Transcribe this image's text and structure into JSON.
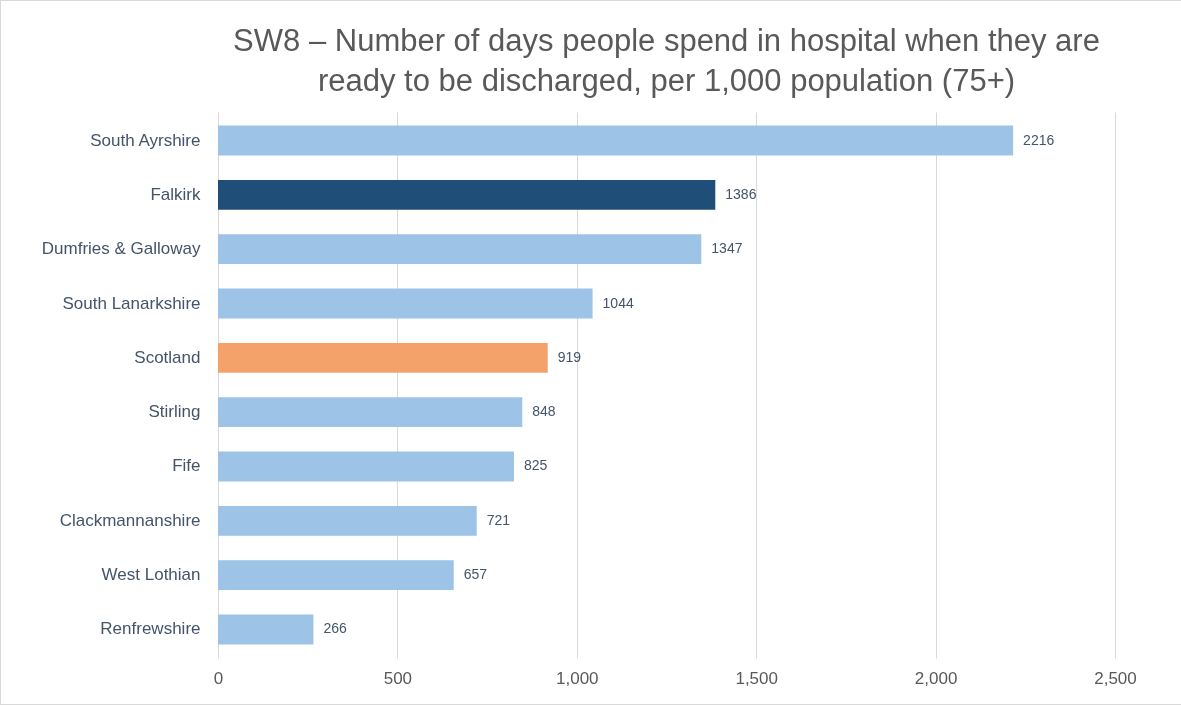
{
  "chart_data": {
    "type": "bar",
    "orientation": "horizontal",
    "title": "SW8 – Number of days people spend in hospital when they are ready to be discharged, per 1,000 population (75+)",
    "categories": [
      "South Ayrshire",
      "Falkirk",
      "Dumfries & Galloway",
      "South Lanarkshire",
      "Scotland",
      "Stirling",
      "Fife",
      "Clackmannanshire",
      "West Lothian",
      "Renfrewshire"
    ],
    "values": [
      2216,
      1386,
      1347,
      1044,
      919,
      848,
      825,
      721,
      657,
      266
    ],
    "colors": [
      "#9dc3e6",
      "#1f4e79",
      "#9dc3e6",
      "#9dc3e6",
      "#f4a26a",
      "#9dc3e6",
      "#9dc3e6",
      "#9dc3e6",
      "#9dc3e6",
      "#9dc3e6"
    ],
    "xlim": [
      0,
      2500
    ],
    "xticks": [
      0,
      {
        "value": 500,
        "label": "500"
      },
      {
        "value": 1000,
        "label": "1,000"
      },
      {
        "value": 1500,
        "label": "1,500"
      },
      {
        "value": 2000,
        "label": "2,000"
      },
      {
        "value": 2500,
        "label": "2,500"
      }
    ],
    "grid": "x",
    "data_labels": true
  }
}
